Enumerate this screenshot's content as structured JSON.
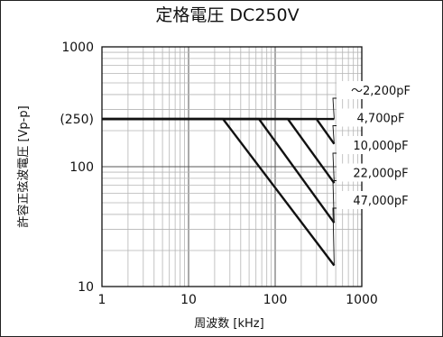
{
  "chart_data": {
    "type": "line",
    "title": "定格電圧 DC250V",
    "xlabel": "周波数 [kHz]",
    "ylabel": "許容正弦波電圧 [Vp-p]",
    "x_scale": "log",
    "y_scale": "log",
    "xlim": [
      1,
      1000
    ],
    "ylim": [
      10,
      1000
    ],
    "x_ticks": [
      {
        "value": 1,
        "label": "1"
      },
      {
        "value": 10,
        "label": "10"
      },
      {
        "value": 100,
        "label": "100"
      },
      {
        "value": 1000,
        "label": "1000"
      }
    ],
    "y_ticks": [
      {
        "value": 10,
        "label": "10"
      },
      {
        "value": 100,
        "label": "100"
      },
      {
        "value": 250,
        "label": "(250)"
      },
      {
        "value": 1000,
        "label": "1000"
      }
    ],
    "grid": true,
    "legend": "right",
    "series": [
      {
        "name": "～2,200pF",
        "x": [
          1,
          480
        ],
        "y": [
          250,
          250
        ]
      },
      {
        "name": "4,700pF",
        "x": [
          1,
          300,
          480
        ],
        "y": [
          250,
          250,
          155
        ]
      },
      {
        "name": "10,000pF",
        "x": [
          1,
          140,
          480
        ],
        "y": [
          250,
          250,
          73
        ]
      },
      {
        "name": "22,000pF",
        "x": [
          1,
          65,
          480
        ],
        "y": [
          250,
          250,
          34
        ]
      },
      {
        "name": "47,000pF",
        "x": [
          1,
          25,
          480
        ],
        "y": [
          250,
          250,
          15
        ]
      }
    ]
  }
}
